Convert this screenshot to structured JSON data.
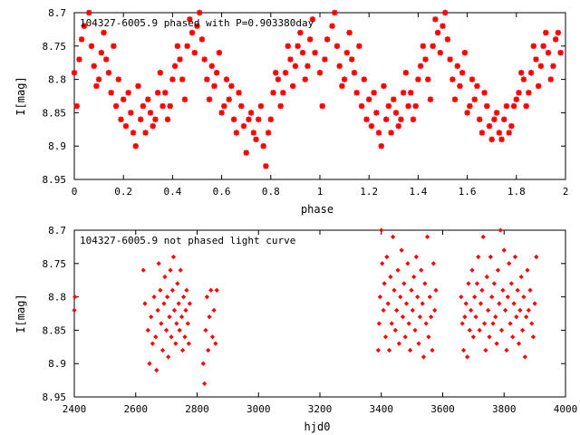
{
  "chart_data": [
    {
      "type": "scatter",
      "title": "104327-6005.9 phased with P=0.903380day",
      "xlabel": "phase",
      "ylabel": "I[mag]",
      "xlim": [
        0,
        2
      ],
      "ylim": [
        8.7,
        8.95
      ],
      "y_inverted": true,
      "xticks": [
        "0",
        "0.2",
        "0.4",
        "0.6",
        "0.8",
        "1",
        "1.2",
        "1.4",
        "1.6",
        "1.8",
        "2"
      ],
      "yticks": [
        "8.7",
        "8.75",
        "8.8",
        "8.85",
        "8.9",
        "8.95"
      ],
      "grid": false,
      "marker_color": "#ff0000",
      "marker": "star",
      "points": [
        [
          0.0,
          8.79
        ],
        [
          0.01,
          8.84
        ],
        [
          0.02,
          8.77
        ],
        [
          0.03,
          8.74
        ],
        [
          0.04,
          8.72
        ],
        [
          0.06,
          8.7
        ],
        [
          0.07,
          8.75
        ],
        [
          0.08,
          8.78
        ],
        [
          0.09,
          8.81
        ],
        [
          0.1,
          8.8
        ],
        [
          0.11,
          8.76
        ],
        [
          0.12,
          8.73
        ],
        [
          0.13,
          8.77
        ],
        [
          0.14,
          8.79
        ],
        [
          0.15,
          8.82
        ],
        [
          0.16,
          8.75
        ],
        [
          0.17,
          8.84
        ],
        [
          0.18,
          8.8
        ],
        [
          0.19,
          8.86
        ],
        [
          0.2,
          8.83
        ],
        [
          0.21,
          8.87
        ],
        [
          0.22,
          8.82
        ],
        [
          0.23,
          8.85
        ],
        [
          0.24,
          8.88
        ],
        [
          0.25,
          8.9
        ],
        [
          0.26,
          8.81
        ],
        [
          0.27,
          8.86
        ],
        [
          0.28,
          8.84
        ],
        [
          0.29,
          8.88
        ],
        [
          0.3,
          8.83
        ],
        [
          0.31,
          8.85
        ],
        [
          0.32,
          8.87
        ],
        [
          0.33,
          8.86
        ],
        [
          0.34,
          8.82
        ],
        [
          0.35,
          8.79
        ],
        [
          0.36,
          8.84
        ],
        [
          0.37,
          8.82
        ],
        [
          0.38,
          8.86
        ],
        [
          0.39,
          8.84
        ],
        [
          0.4,
          8.8
        ],
        [
          0.41,
          8.78
        ],
        [
          0.42,
          8.75
        ],
        [
          0.43,
          8.77
        ],
        [
          0.44,
          8.8
        ],
        [
          0.45,
          8.83
        ],
        [
          0.46,
          8.75
        ],
        [
          0.47,
          8.71
        ],
        [
          0.48,
          8.73
        ],
        [
          0.49,
          8.76
        ],
        [
          0.5,
          8.72
        ],
        [
          0.51,
          8.7
        ],
        [
          0.52,
          8.74
        ],
        [
          0.53,
          8.77
        ],
        [
          0.54,
          8.8
        ],
        [
          0.55,
          8.83
        ],
        [
          0.56,
          8.78
        ],
        [
          0.57,
          8.81
        ],
        [
          0.58,
          8.79
        ],
        [
          0.59,
          8.76
        ],
        [
          0.6,
          8.85
        ],
        [
          0.61,
          8.84
        ],
        [
          0.62,
          8.8
        ],
        [
          0.63,
          8.83
        ],
        [
          0.64,
          8.81
        ],
        [
          0.65,
          8.86
        ],
        [
          0.66,
          8.88
        ],
        [
          0.67,
          8.82
        ],
        [
          0.68,
          8.84
        ],
        [
          0.69,
          8.87
        ],
        [
          0.7,
          8.91
        ],
        [
          0.71,
          8.86
        ],
        [
          0.72,
          8.85
        ],
        [
          0.73,
          8.88
        ],
        [
          0.74,
          8.89
        ],
        [
          0.75,
          8.86
        ],
        [
          0.76,
          8.84
        ],
        [
          0.77,
          8.9
        ],
        [
          0.78,
          8.93
        ],
        [
          0.79,
          8.88
        ],
        [
          0.8,
          8.86
        ],
        [
          0.81,
          8.82
        ],
        [
          0.82,
          8.79
        ],
        [
          0.83,
          8.8
        ],
        [
          0.84,
          8.84
        ],
        [
          0.85,
          8.82
        ],
        [
          0.86,
          8.79
        ],
        [
          0.87,
          8.75
        ],
        [
          0.88,
          8.77
        ],
        [
          0.89,
          8.81
        ],
        [
          0.9,
          8.78
        ],
        [
          0.91,
          8.75
        ],
        [
          0.92,
          8.73
        ],
        [
          0.93,
          8.76
        ],
        [
          0.94,
          8.8
        ],
        [
          0.95,
          8.78
        ],
        [
          0.96,
          8.74
        ],
        [
          0.97,
          8.71
        ],
        [
          0.98,
          8.76
        ],
        [
          1.0,
          8.79
        ],
        [
          1.01,
          8.84
        ],
        [
          1.02,
          8.77
        ],
        [
          1.03,
          8.74
        ],
        [
          1.05,
          8.72
        ],
        [
          1.06,
          8.7
        ],
        [
          1.07,
          8.75
        ],
        [
          1.08,
          8.78
        ],
        [
          1.09,
          8.81
        ],
        [
          1.1,
          8.8
        ],
        [
          1.11,
          8.76
        ],
        [
          1.12,
          8.73
        ],
        [
          1.13,
          8.77
        ],
        [
          1.14,
          8.79
        ],
        [
          1.15,
          8.82
        ],
        [
          1.16,
          8.75
        ],
        [
          1.17,
          8.84
        ],
        [
          1.18,
          8.8
        ],
        [
          1.19,
          8.86
        ],
        [
          1.2,
          8.83
        ],
        [
          1.21,
          8.87
        ],
        [
          1.22,
          8.82
        ],
        [
          1.23,
          8.85
        ],
        [
          1.24,
          8.88
        ],
        [
          1.25,
          8.9
        ],
        [
          1.26,
          8.81
        ],
        [
          1.27,
          8.86
        ],
        [
          1.28,
          8.84
        ],
        [
          1.29,
          8.88
        ],
        [
          1.3,
          8.83
        ],
        [
          1.31,
          8.85
        ],
        [
          1.32,
          8.87
        ],
        [
          1.33,
          8.86
        ],
        [
          1.34,
          8.82
        ],
        [
          1.35,
          8.79
        ],
        [
          1.36,
          8.84
        ],
        [
          1.37,
          8.82
        ],
        [
          1.38,
          8.86
        ],
        [
          1.39,
          8.84
        ],
        [
          1.4,
          8.8
        ],
        [
          1.41,
          8.78
        ],
        [
          1.42,
          8.75
        ],
        [
          1.43,
          8.77
        ],
        [
          1.44,
          8.8
        ],
        [
          1.45,
          8.83
        ],
        [
          1.46,
          8.75
        ],
        [
          1.47,
          8.71
        ],
        [
          1.48,
          8.73
        ],
        [
          1.49,
          8.76
        ],
        [
          1.5,
          8.72
        ],
        [
          1.51,
          8.7
        ],
        [
          1.52,
          8.74
        ],
        [
          1.53,
          8.77
        ],
        [
          1.54,
          8.8
        ],
        [
          1.55,
          8.83
        ],
        [
          1.56,
          8.78
        ],
        [
          1.57,
          8.81
        ],
        [
          1.58,
          8.79
        ],
        [
          1.59,
          8.76
        ],
        [
          1.6,
          8.85
        ],
        [
          1.61,
          8.84
        ],
        [
          1.62,
          8.8
        ],
        [
          1.63,
          8.83
        ],
        [
          1.64,
          8.81
        ],
        [
          1.65,
          8.86
        ],
        [
          1.66,
          8.88
        ],
        [
          1.67,
          8.82
        ],
        [
          1.68,
          8.84
        ],
        [
          1.69,
          8.87
        ],
        [
          1.7,
          8.89
        ],
        [
          1.71,
          8.86
        ],
        [
          1.72,
          8.85
        ],
        [
          1.73,
          8.88
        ],
        [
          1.74,
          8.89
        ],
        [
          1.75,
          8.86
        ],
        [
          1.76,
          8.84
        ],
        [
          1.77,
          8.88
        ],
        [
          1.78,
          8.87
        ],
        [
          1.79,
          8.84
        ],
        [
          1.8,
          8.83
        ],
        [
          1.81,
          8.82
        ],
        [
          1.82,
          8.79
        ],
        [
          1.83,
          8.8
        ],
        [
          1.84,
          8.84
        ],
        [
          1.85,
          8.82
        ],
        [
          1.86,
          8.79
        ],
        [
          1.87,
          8.75
        ],
        [
          1.88,
          8.77
        ],
        [
          1.89,
          8.81
        ],
        [
          1.9,
          8.78
        ],
        [
          1.91,
          8.75
        ],
        [
          1.92,
          8.73
        ],
        [
          1.93,
          8.76
        ],
        [
          1.94,
          8.8
        ],
        [
          1.95,
          8.78
        ],
        [
          1.96,
          8.74
        ],
        [
          1.97,
          8.73
        ],
        [
          1.98,
          8.76
        ]
      ]
    },
    {
      "type": "scatter",
      "title": "104327-6005.9 not phased light curve",
      "xlabel": "hjd0",
      "ylabel": "I[mag]",
      "xlim": [
        2400,
        4000
      ],
      "ylim": [
        8.7,
        8.95
      ],
      "y_inverted": true,
      "xticks": [
        "2400",
        "2600",
        "2800",
        "3000",
        "3200",
        "3400",
        "3600",
        "3800",
        "4000"
      ],
      "yticks": [
        "8.7",
        "8.75",
        "8.8",
        "8.85",
        "8.9",
        "8.95"
      ],
      "grid": false,
      "marker_color": "#ff0000",
      "marker": "diamond",
      "points": [
        [
          2400,
          8.82
        ],
        [
          2402,
          8.8
        ],
        [
          2625,
          8.76
        ],
        [
          2630,
          8.81
        ],
        [
          2640,
          8.85
        ],
        [
          2645,
          8.9
        ],
        [
          2650,
          8.83
        ],
        [
          2655,
          8.87
        ],
        [
          2660,
          8.8
        ],
        [
          2665,
          8.86
        ],
        [
          2668,
          8.91
        ],
        [
          2672,
          8.82
        ],
        [
          2675,
          8.75
        ],
        [
          2680,
          8.79
        ],
        [
          2683,
          8.84
        ],
        [
          2688,
          8.88
        ],
        [
          2692,
          8.81
        ],
        [
          2695,
          8.77
        ],
        [
          2700,
          8.85
        ],
        [
          2703,
          8.8
        ],
        [
          2706,
          8.89
        ],
        [
          2710,
          8.83
        ],
        [
          2713,
          8.76
        ],
        [
          2716,
          8.86
        ],
        [
          2720,
          8.79
        ],
        [
          2723,
          8.74
        ],
        [
          2726,
          8.82
        ],
        [
          2730,
          8.87
        ],
        [
          2733,
          8.84
        ],
        [
          2736,
          8.78
        ],
        [
          2740,
          8.81
        ],
        [
          2743,
          8.85
        ],
        [
          2746,
          8.76
        ],
        [
          2750,
          8.83
        ],
        [
          2753,
          8.88
        ],
        [
          2756,
          8.8
        ],
        [
          2760,
          8.86
        ],
        [
          2763,
          8.82
        ],
        [
          2766,
          8.79
        ],
        [
          2770,
          8.84
        ],
        [
          2773,
          8.87
        ],
        [
          2776,
          8.81
        ],
        [
          2820,
          8.9
        ],
        [
          2824,
          8.93
        ],
        [
          2828,
          8.85
        ],
        [
          2832,
          8.8
        ],
        [
          2836,
          8.88
        ],
        [
          2840,
          8.83
        ],
        [
          2845,
          8.79
        ],
        [
          2850,
          8.86
        ],
        [
          2855,
          8.82
        ],
        [
          2860,
          8.87
        ],
        [
          2864,
          8.79
        ],
        [
          3390,
          8.88
        ],
        [
          3393,
          8.84
        ],
        [
          3396,
          8.8
        ],
        [
          3400,
          8.7
        ],
        [
          3403,
          8.75
        ],
        [
          3407,
          8.82
        ],
        [
          3410,
          8.78
        ],
        [
          3414,
          8.86
        ],
        [
          3418,
          8.74
        ],
        [
          3422,
          8.81
        ],
        [
          3426,
          8.88
        ],
        [
          3430,
          8.77
        ],
        [
          3434,
          8.84
        ],
        [
          3438,
          8.71
        ],
        [
          3442,
          8.79
        ],
        [
          3446,
          8.85
        ],
        [
          3450,
          8.82
        ],
        [
          3454,
          8.76
        ],
        [
          3458,
          8.87
        ],
        [
          3462,
          8.8
        ],
        [
          3466,
          8.73
        ],
        [
          3470,
          8.83
        ],
        [
          3474,
          8.78
        ],
        [
          3478,
          8.86
        ],
        [
          3482,
          8.81
        ],
        [
          3486,
          8.75
        ],
        [
          3490,
          8.84
        ],
        [
          3494,
          8.88
        ],
        [
          3498,
          8.79
        ],
        [
          3502,
          8.82
        ],
        [
          3506,
          8.77
        ],
        [
          3510,
          8.85
        ],
        [
          3514,
          8.74
        ],
        [
          3518,
          8.8
        ],
        [
          3522,
          8.87
        ],
        [
          3526,
          8.83
        ],
        [
          3530,
          8.76
        ],
        [
          3534,
          8.81
        ],
        [
          3538,
          8.89
        ],
        [
          3542,
          8.78
        ],
        [
          3546,
          8.84
        ],
        [
          3550,
          8.71
        ],
        [
          3554,
          8.86
        ],
        [
          3558,
          8.8
        ],
        [
          3562,
          8.83
        ],
        [
          3566,
          8.88
        ],
        [
          3570,
          8.75
        ],
        [
          3574,
          8.82
        ],
        [
          3578,
          8.79
        ],
        [
          3660,
          8.8
        ],
        [
          3664,
          8.84
        ],
        [
          3668,
          8.88
        ],
        [
          3672,
          8.83
        ],
        [
          3676,
          8.81
        ],
        [
          3680,
          8.89
        ],
        [
          3684,
          8.78
        ],
        [
          3688,
          8.85
        ],
        [
          3692,
          8.82
        ],
        [
          3696,
          8.76
        ],
        [
          3700,
          8.86
        ],
        [
          3704,
          8.8
        ],
        [
          3708,
          8.83
        ],
        [
          3712,
          8.78
        ],
        [
          3716,
          8.74
        ],
        [
          3720,
          8.85
        ],
        [
          3724,
          8.81
        ],
        [
          3728,
          8.79
        ],
        [
          3732,
          8.71
        ],
        [
          3736,
          8.84
        ],
        [
          3740,
          8.88
        ],
        [
          3744,
          8.77
        ],
        [
          3748,
          8.82
        ],
        [
          3752,
          8.86
        ],
        [
          3756,
          8.74
        ],
        [
          3760,
          8.8
        ],
        [
          3764,
          8.84
        ],
        [
          3768,
          8.78
        ],
        [
          3772,
          8.83
        ],
        [
          3776,
          8.87
        ],
        [
          3780,
          8.76
        ],
        [
          3784,
          8.81
        ],
        [
          3788,
          8.7
        ],
        [
          3792,
          8.85
        ],
        [
          3796,
          8.79
        ],
        [
          3800,
          8.73
        ],
        [
          3804,
          8.82
        ],
        [
          3808,
          8.88
        ],
        [
          3812,
          8.8
        ],
        [
          3816,
          8.75
        ],
        [
          3820,
          8.84
        ],
        [
          3824,
          8.78
        ],
        [
          3828,
          8.86
        ],
        [
          3832,
          8.81
        ],
        [
          3836,
          8.74
        ],
        [
          3840,
          8.83
        ],
        [
          3844,
          8.79
        ],
        [
          3848,
          8.87
        ],
        [
          3852,
          8.82
        ],
        [
          3856,
          8.77
        ],
        [
          3860,
          8.85
        ],
        [
          3864,
          8.8
        ],
        [
          3868,
          8.89
        ],
        [
          3872,
          8.83
        ],
        [
          3876,
          8.76
        ],
        [
          3880,
          8.82
        ],
        [
          3885,
          8.79
        ],
        [
          3890,
          8.84
        ],
        [
          3895,
          8.86
        ],
        [
          3900,
          8.81
        ],
        [
          3905,
          8.74
        ]
      ]
    }
  ]
}
